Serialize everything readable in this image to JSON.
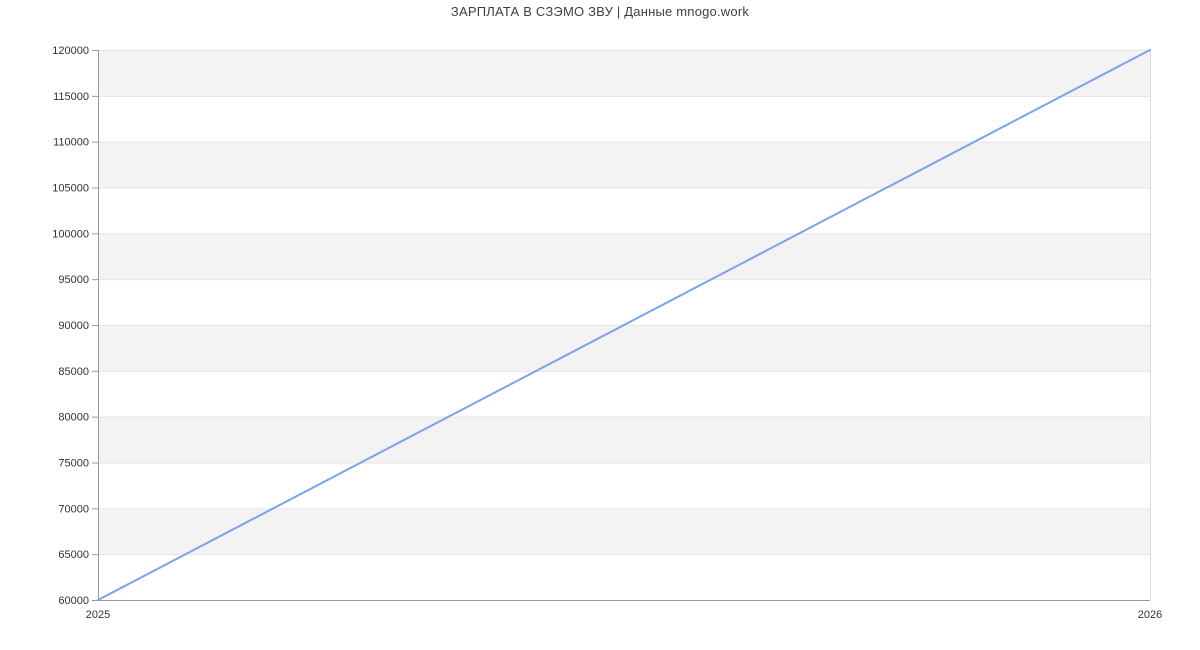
{
  "chart_data": {
    "type": "line",
    "title": "ЗАРПЛАТА В СЗЭМО ЗВУ | Данные mnogo.work",
    "x": [
      "2025",
      "2026"
    ],
    "series": [
      {
        "values": [
          60000,
          120000
        ]
      }
    ],
    "yticks": [
      60000,
      65000,
      70000,
      75000,
      80000,
      85000,
      90000,
      95000,
      100000,
      105000,
      110000,
      115000,
      120000
    ],
    "ylim": [
      60000,
      120000
    ],
    "xlabel": "",
    "ylabel": "",
    "grid": true,
    "legend_position": "none",
    "band_pattern": "alternating-horizontal",
    "colors": {
      "line": "#7ba3e8",
      "band": "#f3f3f3",
      "band_alt": "#ffffff",
      "grid": "#e4e4e4",
      "axis": "#999999",
      "plot_border": "#dcdcdc",
      "tick_label": "#333333",
      "title": "#3f3f3f",
      "background": "#ffffff"
    }
  }
}
